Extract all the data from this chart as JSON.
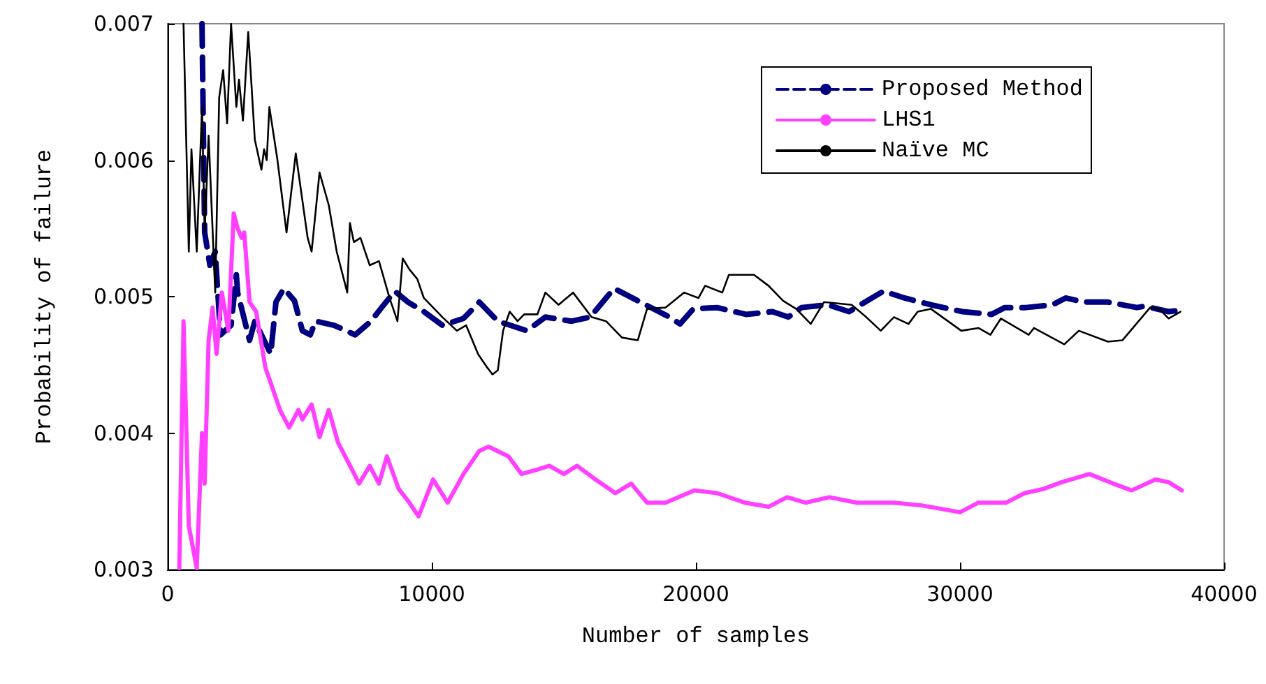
{
  "chart_data": {
    "type": "line",
    "xlabel": "Number of samples",
    "ylabel": "Probability of failure",
    "xlim": [
      0,
      40000
    ],
    "xticks": [
      0,
      10000,
      20000,
      30000,
      40000
    ],
    "ylim": [
      0.003,
      0.007
    ],
    "yticks": [
      0.003,
      0.004,
      0.005,
      0.006,
      0.007
    ],
    "grid": false,
    "legend": "top right",
    "marker": "none",
    "series": [
      {
        "name": "Proposed Method",
        "color": "#000080",
        "line_style": "dashed",
        "x": [
          1300,
          1400,
          1600,
          1800,
          2000,
          2400,
          2600,
          2650,
          3100,
          3300,
          3900,
          4100,
          4400,
          4800,
          5100,
          5400,
          5600,
          6300,
          7100,
          7700,
          8100,
          8600,
          9100,
          9700,
          10400,
          11200,
          11800,
          12500,
          13600,
          14300,
          15300,
          16000,
          16900,
          17800,
          19000,
          19400,
          19900,
          20800,
          21900,
          22900,
          23500,
          24000,
          25000,
          25800,
          27100,
          27900,
          28900,
          30100,
          31200,
          31700,
          32500,
          33500,
          34000,
          34700,
          35600,
          36700,
          37000,
          37900,
          38400
        ],
        "values": [
          0.007,
          0.00547,
          0.00523,
          0.00533,
          0.00472,
          0.00479,
          0.00516,
          0.00503,
          0.00468,
          0.00482,
          0.00458,
          0.00496,
          0.00506,
          0.00497,
          0.00475,
          0.00472,
          0.00482,
          0.00479,
          0.00472,
          0.00482,
          0.00492,
          0.00504,
          0.00496,
          0.00489,
          0.00479,
          0.00484,
          0.00496,
          0.00482,
          0.00475,
          0.00485,
          0.00482,
          0.00485,
          0.00506,
          0.00497,
          0.00485,
          0.0048,
          0.00491,
          0.00492,
          0.00487,
          0.00489,
          0.00485,
          0.00492,
          0.00494,
          0.00489,
          0.00504,
          0.00499,
          0.00494,
          0.00489,
          0.00487,
          0.00492,
          0.00492,
          0.00494,
          0.00499,
          0.00496,
          0.00496,
          0.00492,
          0.00493,
          0.00489,
          0.0049
        ]
      },
      {
        "name": "LHS1",
        "color": "#ff40ff",
        "line_style": "solid",
        "x": [
          440,
          600,
          800,
          1100,
          1300,
          1400,
          1550,
          1700,
          1850,
          2050,
          2300,
          2500,
          2650,
          2800,
          2900,
          3100,
          3350,
          3700,
          3950,
          4250,
          4600,
          4950,
          5100,
          5450,
          5750,
          6100,
          6450,
          6800,
          7250,
          7650,
          8000,
          8300,
          8750,
          9150,
          9500,
          10050,
          10600,
          11200,
          11800,
          12150,
          12900,
          13400,
          13950,
          14450,
          15000,
          15500,
          16200,
          16950,
          17550,
          18150,
          18850,
          19950,
          20800,
          21850,
          22750,
          23450,
          24150,
          25050,
          26100,
          27500,
          28550,
          30000,
          30700,
          31750,
          32450,
          33150,
          33850,
          34900,
          35800,
          36500,
          37400,
          37900,
          38400
        ],
        "values": [
          0.00301,
          0.00482,
          0.00332,
          0.00301,
          0.004,
          0.00363,
          0.00468,
          0.00492,
          0.00458,
          0.00503,
          0.00475,
          0.00561,
          0.0055,
          0.00543,
          0.00547,
          0.00496,
          0.00489,
          0.00448,
          0.00434,
          0.00417,
          0.00404,
          0.00417,
          0.0041,
          0.00421,
          0.00397,
          0.00417,
          0.00393,
          0.0038,
          0.00363,
          0.00376,
          0.00363,
          0.00383,
          0.00359,
          0.00349,
          0.00339,
          0.00366,
          0.00349,
          0.0037,
          0.00387,
          0.0039,
          0.00383,
          0.0037,
          0.00373,
          0.00376,
          0.0037,
          0.00376,
          0.00366,
          0.00356,
          0.00363,
          0.00349,
          0.00349,
          0.00358,
          0.00356,
          0.00349,
          0.00346,
          0.00353,
          0.00349,
          0.00353,
          0.00349,
          0.00349,
          0.00347,
          0.00342,
          0.00349,
          0.00349,
          0.00356,
          0.00359,
          0.00364,
          0.0037,
          0.00363,
          0.00358,
          0.00366,
          0.00364,
          0.00358
        ]
      },
      {
        "name": "Naïve MC",
        "color": "#000000",
        "line_style": "solid",
        "x": [
          600,
          800,
          900,
          1100,
          1300,
          1400,
          1550,
          1800,
          1950,
          2100,
          2250,
          2400,
          2600,
          2700,
          2850,
          3050,
          3300,
          3550,
          3650,
          3750,
          3850,
          4150,
          4500,
          4850,
          5300,
          5450,
          5750,
          6100,
          6400,
          6800,
          6900,
          7050,
          7300,
          7650,
          8000,
          8400,
          8700,
          8900,
          9150,
          9450,
          9700,
          10050,
          10400,
          10950,
          11300,
          11750,
          12100,
          12300,
          12500,
          12700,
          12950,
          13250,
          13500,
          14000,
          14300,
          14800,
          15350,
          16050,
          16600,
          17200,
          17800,
          18150,
          18850,
          19550,
          20100,
          20350,
          21000,
          21250,
          22200,
          22750,
          23300,
          23800,
          24350,
          24850,
          25900,
          26450,
          27000,
          27500,
          28050,
          28400,
          28900,
          30050,
          30700,
          31150,
          31550,
          32600,
          32800,
          33950,
          34500,
          35600,
          36150,
          37200,
          37550,
          37900,
          38350
        ],
        "values": [
          0.007,
          0.00533,
          0.00608,
          0.00533,
          0.00639,
          0.00547,
          0.00618,
          0.00503,
          0.00646,
          0.00666,
          0.00627,
          0.007,
          0.00639,
          0.00659,
          0.00629,
          0.00694,
          0.00615,
          0.00593,
          0.00608,
          0.006,
          0.00639,
          0.00601,
          0.00547,
          0.00605,
          0.00543,
          0.00533,
          0.00591,
          0.00567,
          0.00533,
          0.00503,
          0.00554,
          0.0054,
          0.00543,
          0.00523,
          0.00526,
          0.00499,
          0.00482,
          0.00528,
          0.0052,
          0.00513,
          0.00499,
          0.00492,
          0.00485,
          0.00475,
          0.00479,
          0.00458,
          0.00448,
          0.00443,
          0.00446,
          0.00475,
          0.00489,
          0.00482,
          0.00487,
          0.00487,
          0.00503,
          0.00494,
          0.00503,
          0.00485,
          0.00482,
          0.0047,
          0.00468,
          0.00491,
          0.00492,
          0.00503,
          0.00499,
          0.00508,
          0.00503,
          0.00516,
          0.00516,
          0.00508,
          0.00497,
          0.00491,
          0.0048,
          0.00496,
          0.00494,
          0.00485,
          0.00475,
          0.00485,
          0.0048,
          0.00489,
          0.00491,
          0.00475,
          0.00477,
          0.00472,
          0.00484,
          0.00472,
          0.00477,
          0.00465,
          0.00475,
          0.00467,
          0.00468,
          0.00492,
          0.00491,
          0.00484,
          0.00489
        ]
      }
    ]
  }
}
